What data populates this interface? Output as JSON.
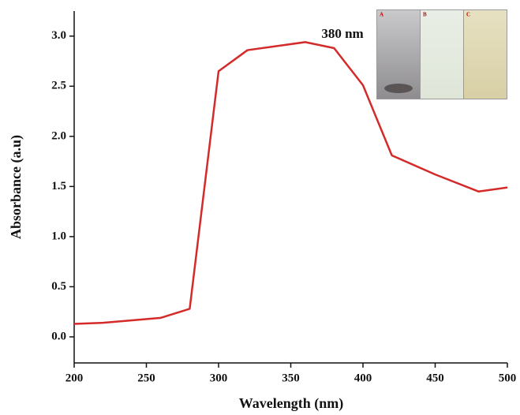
{
  "chart_data": {
    "type": "line",
    "x_label": "Wavelength (nm)",
    "y_label": "Absorbance (a.u)",
    "annotation": "380 nm",
    "inset_labels": [
      "A",
      "B",
      "C"
    ],
    "x": [
      200,
      220,
      260,
      280,
      300,
      320,
      360,
      380,
      400,
      420,
      450,
      480,
      500
    ],
    "series": [
      {
        "color": "#d42a2a",
        "values": [
          0.13,
          0.14,
          0.19,
          0.28,
          2.65,
          2.86,
          2.94,
          2.88,
          2.51,
          1.81,
          1.62,
          1.45,
          1.49
        ]
      }
    ],
    "xlim": [
      200,
      500
    ],
    "xticks": [
      200,
      250,
      300,
      350,
      400,
      450,
      500
    ],
    "ylim": [
      -0.26,
      3.25
    ],
    "yticks": [
      {
        "value": 0,
        "label": "0.0"
      },
      0.5,
      {
        "value": 1,
        "label": "1.0"
      },
      1.5,
      {
        "value": 2,
        "label": "2.0"
      },
      2.5,
      {
        "value": 3,
        "label": "3.0"
      }
    ]
  }
}
